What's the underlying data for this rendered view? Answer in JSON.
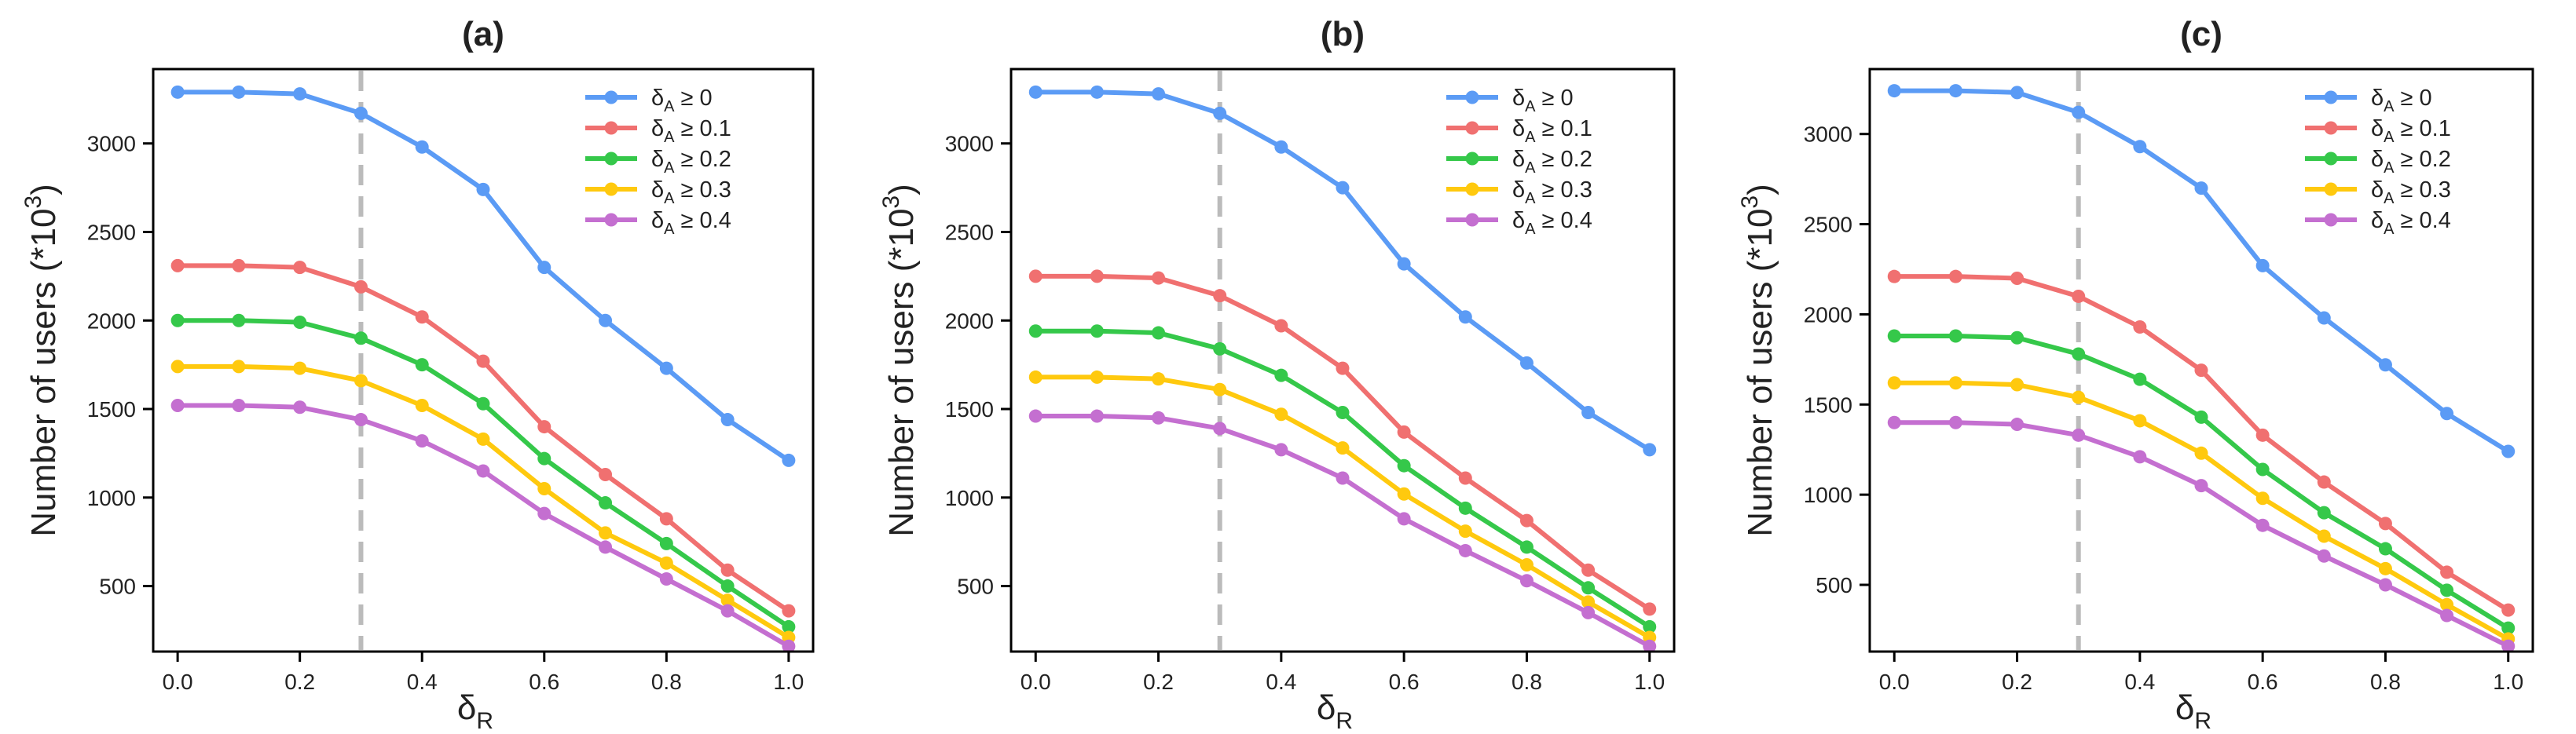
{
  "chart_data": [
    {
      "type": "line",
      "title": "(a)",
      "xlabel": "δ",
      "xlabel_sub": "R",
      "ylabel": "Number of users (*10",
      "ylabel_sup": "3",
      "ylabel_close": ")",
      "xlim": [
        -0.04,
        1.04
      ],
      "ylim": [
        130,
        3420
      ],
      "xticks": [
        "0.0",
        "0.2",
        "0.4",
        "0.6",
        "0.8",
        "1.0"
      ],
      "xtick_values": [
        0,
        0.2,
        0.4,
        0.6,
        0.8,
        1.0
      ],
      "yticks": [
        "500",
        "1000",
        "1500",
        "2000",
        "2500",
        "3000"
      ],
      "ytick_values": [
        500,
        1000,
        1500,
        2000,
        2500,
        3000
      ],
      "vline": 0.3,
      "x": [
        0,
        0.1,
        0.2,
        0.3,
        0.4,
        0.5,
        0.6,
        0.7,
        0.8,
        0.9,
        1.0
      ],
      "series": [
        {
          "name": "δA ≥ 0",
          "values": [
            3290,
            3290,
            3280,
            3170,
            2980,
            2740,
            2300,
            2000,
            1730,
            1440,
            1210
          ]
        },
        {
          "name": "δA ≥ 0.1",
          "values": [
            2310,
            2310,
            2300,
            2190,
            2020,
            1770,
            1400,
            1130,
            880,
            590,
            360
          ]
        },
        {
          "name": "δA ≥ 0.2",
          "values": [
            2000,
            2000,
            1990,
            1900,
            1750,
            1530,
            1220,
            970,
            740,
            500,
            270
          ]
        },
        {
          "name": "δA ≥ 0.3",
          "values": [
            1740,
            1740,
            1730,
            1660,
            1520,
            1330,
            1050,
            800,
            630,
            420,
            210
          ]
        },
        {
          "name": "δA ≥ 0.4",
          "values": [
            1520,
            1520,
            1510,
            1440,
            1320,
            1150,
            910,
            720,
            540,
            360,
            160
          ]
        }
      ]
    },
    {
      "type": "line",
      "title": "(b)",
      "xlabel": "δ",
      "xlabel_sub": "R",
      "ylabel": "Number of users (*10",
      "ylabel_sup": "3",
      "ylabel_close": ")",
      "xlim": [
        -0.04,
        1.04
      ],
      "ylim": [
        130,
        3420
      ],
      "xticks": [
        "0.0",
        "0.2",
        "0.4",
        "0.6",
        "0.8",
        "1.0"
      ],
      "xtick_values": [
        0,
        0.2,
        0.4,
        0.6,
        0.8,
        1.0
      ],
      "yticks": [
        "500",
        "1000",
        "1500",
        "2000",
        "2500",
        "3000"
      ],
      "ytick_values": [
        500,
        1000,
        1500,
        2000,
        2500,
        3000
      ],
      "vline": 0.3,
      "x": [
        0,
        0.1,
        0.2,
        0.3,
        0.4,
        0.5,
        0.6,
        0.7,
        0.8,
        0.9,
        1.0
      ],
      "series": [
        {
          "name": "δA ≥ 0",
          "values": [
            3290,
            3290,
            3280,
            3170,
            2980,
            2750,
            2320,
            2020,
            1760,
            1480,
            1270
          ]
        },
        {
          "name": "δA ≥ 0.1",
          "values": [
            2250,
            2250,
            2240,
            2140,
            1970,
            1730,
            1370,
            1110,
            870,
            590,
            370
          ]
        },
        {
          "name": "δA ≥ 0.2",
          "values": [
            1940,
            1940,
            1930,
            1840,
            1690,
            1480,
            1180,
            940,
            720,
            490,
            270
          ]
        },
        {
          "name": "δA ≥ 0.3",
          "values": [
            1680,
            1680,
            1670,
            1610,
            1470,
            1280,
            1020,
            810,
            620,
            410,
            210
          ]
        },
        {
          "name": "δA ≥ 0.4",
          "values": [
            1460,
            1460,
            1450,
            1390,
            1270,
            1110,
            880,
            700,
            530,
            350,
            160
          ]
        }
      ]
    },
    {
      "type": "line",
      "title": "(c)",
      "xlabel": "δ",
      "xlabel_sub": "R",
      "ylabel": "Number of users (*10",
      "ylabel_sup": "3",
      "ylabel_close": ")",
      "xlim": [
        -0.04,
        1.04
      ],
      "ylim": [
        130,
        3360
      ],
      "xticks": [
        "0.0",
        "0.2",
        "0.4",
        "0.6",
        "0.8",
        "1.0"
      ],
      "xtick_values": [
        0,
        0.2,
        0.4,
        0.6,
        0.8,
        1.0
      ],
      "yticks": [
        "500",
        "1000",
        "1500",
        "2000",
        "2500",
        "3000"
      ],
      "ytick_values": [
        500,
        1000,
        1500,
        2000,
        2500,
        3000
      ],
      "vline": 0.3,
      "x": [
        0,
        0.1,
        0.2,
        0.3,
        0.4,
        0.5,
        0.6,
        0.7,
        0.8,
        0.9,
        1.0
      ],
      "series": [
        {
          "name": "δA ≥ 0",
          "values": [
            3240,
            3240,
            3230,
            3120,
            2930,
            2700,
            2270,
            1980,
            1720,
            1450,
            1240
          ]
        },
        {
          "name": "δA ≥ 0.1",
          "values": [
            2210,
            2210,
            2200,
            2100,
            1930,
            1690,
            1330,
            1070,
            840,
            570,
            360
          ]
        },
        {
          "name": "δA ≥ 0.2",
          "values": [
            1880,
            1880,
            1870,
            1780,
            1640,
            1430,
            1140,
            900,
            700,
            470,
            260
          ]
        },
        {
          "name": "δA ≥ 0.3",
          "values": [
            1620,
            1620,
            1610,
            1540,
            1410,
            1230,
            980,
            770,
            590,
            390,
            200
          ]
        },
        {
          "name": "δA ≥ 0.4",
          "values": [
            1400,
            1400,
            1390,
            1330,
            1210,
            1050,
            830,
            660,
            500,
            330,
            160
          ]
        }
      ]
    }
  ],
  "legend": {
    "location": "top-right",
    "symbol": "δ",
    "subscript": "A",
    "entries": [
      {
        "relation": "≥",
        "threshold": "0"
      },
      {
        "relation": "≥",
        "threshold": "0.1"
      },
      {
        "relation": "≥",
        "threshold": "0.2"
      },
      {
        "relation": "≥",
        "threshold": "0.3"
      },
      {
        "relation": "≥",
        "threshold": "0.4"
      }
    ]
  },
  "colors": {
    "series": [
      "#5b9bf5",
      "#f07070",
      "#35c84a",
      "#ffc90e",
      "#c46fd0"
    ],
    "vline": "#bbbbbb",
    "axis": "#000000"
  }
}
